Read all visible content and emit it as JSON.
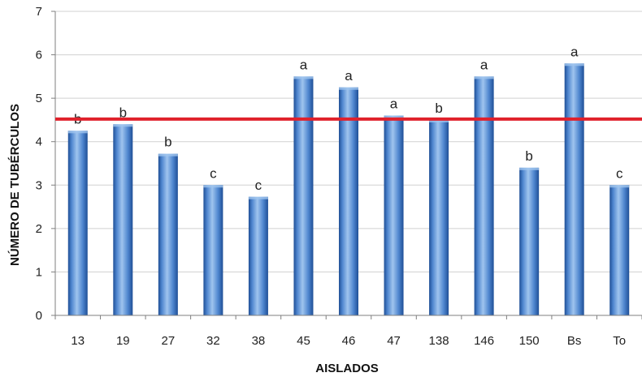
{
  "chart_data": {
    "type": "bar",
    "title": "",
    "xlabel": "AISLADOS",
    "ylabel": "NÚMERO DE TUBÉRCULOS",
    "ylim": [
      0,
      7
    ],
    "yticks": [
      "0",
      "1",
      "2",
      "3",
      "4",
      "5",
      "6",
      "7"
    ],
    "grid": true,
    "legend": "none",
    "categories": [
      "13",
      "19",
      "27",
      "32",
      "38",
      "45",
      "46",
      "47",
      "138",
      "146",
      "150",
      "Bs",
      "To"
    ],
    "values": [
      4.25,
      4.4,
      3.72,
      3.0,
      2.73,
      5.5,
      5.25,
      4.6,
      4.5,
      5.5,
      3.4,
      5.8,
      3.0
    ],
    "significance_letters": [
      "b",
      "b",
      "b",
      "c",
      "c",
      "a",
      "a",
      "a",
      "b",
      "a",
      "b",
      "a",
      "c"
    ],
    "reference_line": {
      "value": 4.52,
      "color": "#e0212b"
    },
    "colors": {
      "bar_light": "#9fc4ee",
      "bar_mid": "#4f86cf",
      "bar_dark": "#1f4f96",
      "grid": "#d0d0d0",
      "axis": "#7f7f7f"
    }
  }
}
